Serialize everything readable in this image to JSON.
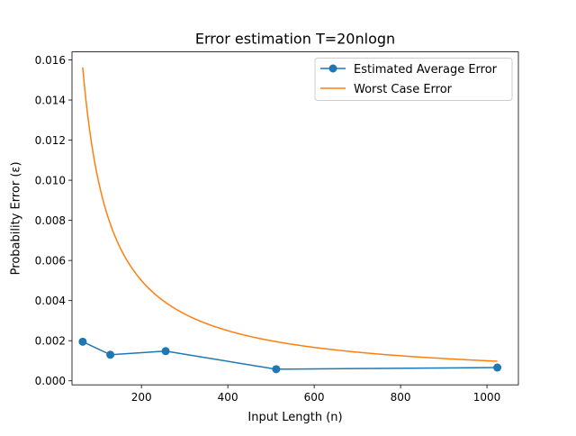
{
  "chart_data": {
    "type": "line",
    "title": "Error estimation T=20nlogn",
    "xlabel": "Input Length (n)",
    "ylabel": "Probability Error (ε)",
    "xlim": [
      39.2,
      1072.8
    ],
    "ylim": [
      -0.0002,
      0.0164
    ],
    "xticks": [
      200,
      400,
      600,
      800,
      1000
    ],
    "xtick_labels": [
      "200",
      "400",
      "600",
      "800",
      "1000"
    ],
    "yticks": [
      0.0,
      0.002,
      0.004,
      0.006,
      0.008,
      0.01,
      0.012,
      0.014,
      0.016
    ],
    "ytick_labels": [
      "0.000",
      "0.002",
      "0.004",
      "0.006",
      "0.008",
      "0.010",
      "0.012",
      "0.014",
      "0.016"
    ],
    "grid": false,
    "legend_position": "top-right",
    "series": [
      {
        "name": "Estimated Average Error",
        "color": "#1f77b4",
        "marker": "circle",
        "x": [
          64,
          128,
          256,
          512,
          1024
        ],
        "y": [
          0.00195,
          0.0013,
          0.00148,
          0.00058,
          0.00066
        ]
      },
      {
        "name": "Worst Case Error",
        "color": "#ff7f0e",
        "marker": "none",
        "function": "1/n",
        "x_range": [
          64,
          1024
        ]
      }
    ]
  }
}
